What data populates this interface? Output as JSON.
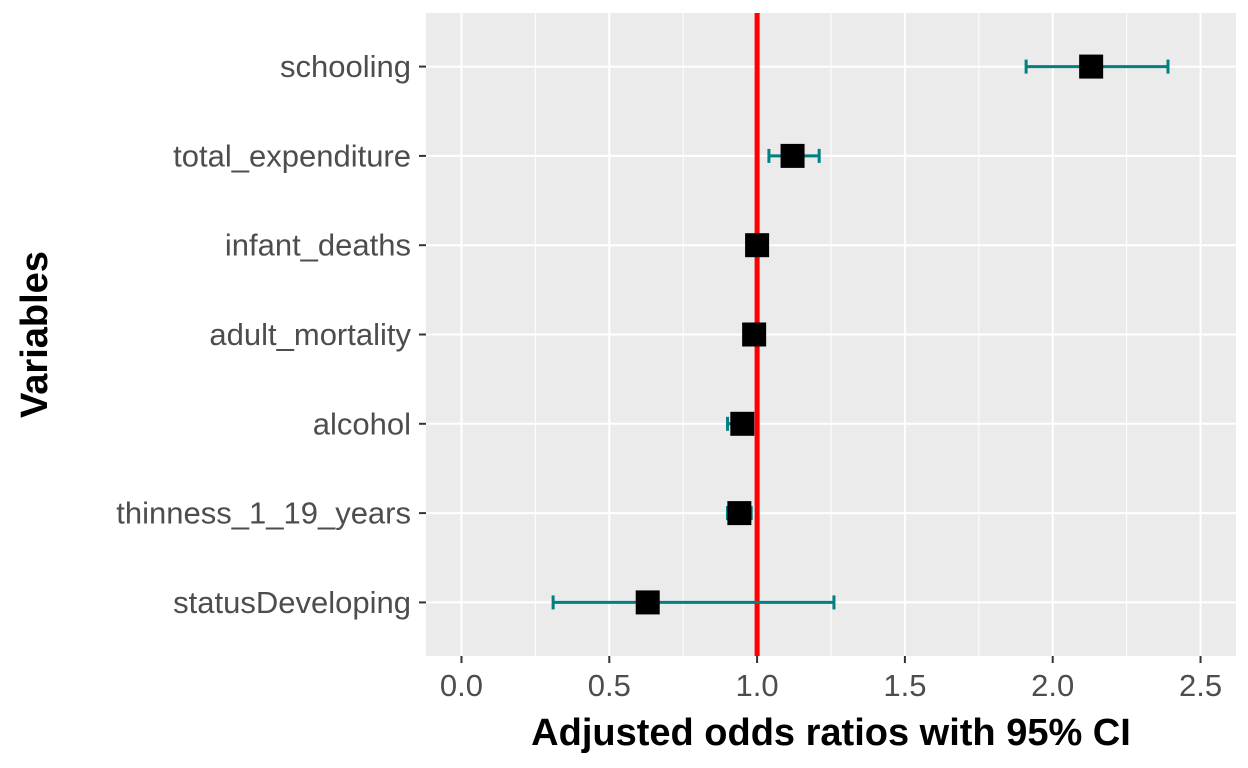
{
  "chart_data": {
    "type": "forest",
    "xlabel": "Adjusted odds ratios with 95% CI",
    "ylabel": "Variables",
    "xlim": [
      -0.12,
      2.62
    ],
    "xticks": [
      "0.0",
      "0.5",
      "1.0",
      "1.5",
      "2.0",
      "2.5"
    ],
    "xtick_values": [
      0,
      0.5,
      1.0,
      1.5,
      2.0,
      2.5
    ],
    "reference_line": 1.0,
    "grid": true,
    "categories": [
      "statusDeveloping",
      "thinness_1_19_years",
      "alcohol",
      "adult_mortality",
      "infant_deaths",
      "total_expenditure",
      "schooling"
    ],
    "estimate": [
      0.63,
      0.94,
      0.95,
      0.99,
      1.0,
      1.12,
      2.13
    ],
    "ci_low": [
      0.31,
      0.9,
      0.9,
      0.98,
      0.99,
      1.04,
      1.91
    ],
    "ci_high": [
      1.26,
      0.98,
      0.98,
      1.0,
      1.01,
      1.21,
      2.39
    ],
    "colors": {
      "panel": "#ebebeb",
      "grid": "#ffffff",
      "point": "#000000",
      "errorbar": "#008080",
      "reference": "#ff0000"
    }
  }
}
